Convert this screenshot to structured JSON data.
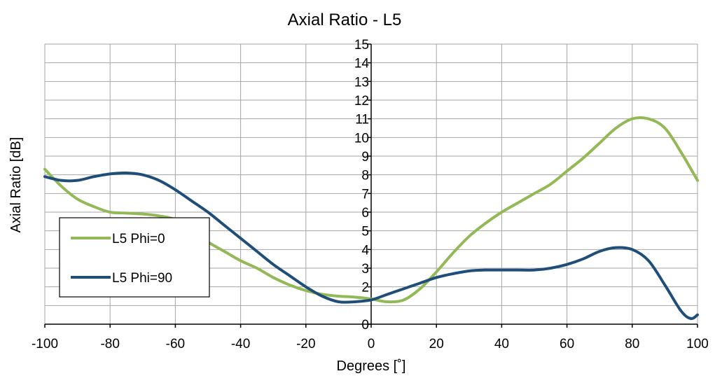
{
  "chart_data": {
    "type": "line",
    "title": "Axial Ratio - L5",
    "xlabel": "Degrees [˚]",
    "ylabel": "Axial Ratio [dB]",
    "xlim": [
      -100,
      100
    ],
    "ylim": [
      0,
      15
    ],
    "x_ticks": [
      "-100",
      "-80",
      "-60",
      "-40",
      "-20",
      "0",
      "20",
      "40",
      "60",
      "80",
      "100"
    ],
    "y_ticks": [
      "0",
      "2",
      "3",
      "4",
      "5",
      "6",
      "7",
      "8",
      "9",
      "10",
      "11",
      "12",
      "13",
      "14",
      "15"
    ],
    "grid": true,
    "legend_position": "left",
    "series": [
      {
        "name": "L5 Phi=0",
        "color": "#92b956",
        "x": [
          -100,
          -95,
          -90,
          -85,
          -80,
          -75,
          -70,
          -65,
          -60,
          -55,
          -50,
          -45,
          -40,
          -35,
          -30,
          -25,
          -20,
          -15,
          -10,
          -5,
          0,
          5,
          10,
          15,
          20,
          25,
          30,
          35,
          40,
          45,
          50,
          55,
          60,
          65,
          70,
          75,
          80,
          85,
          90,
          95,
          100
        ],
        "y": [
          8.3,
          7.4,
          6.7,
          6.3,
          6.0,
          5.95,
          5.9,
          5.8,
          5.6,
          5.0,
          4.4,
          3.9,
          3.4,
          3.0,
          2.5,
          2.1,
          1.8,
          1.6,
          1.5,
          1.45,
          1.35,
          1.2,
          1.3,
          1.9,
          2.8,
          3.8,
          4.7,
          5.4,
          6.0,
          6.5,
          7.0,
          7.5,
          8.2,
          8.9,
          9.7,
          10.5,
          11.0,
          11.0,
          10.5,
          9.2,
          7.7
        ]
      },
      {
        "name": "L5 Phi=90",
        "color": "#1f4e79",
        "x": [
          -100,
          -95,
          -90,
          -85,
          -80,
          -75,
          -70,
          -65,
          -60,
          -55,
          -50,
          -45,
          -40,
          -35,
          -30,
          -25,
          -20,
          -15,
          -10,
          -5,
          0,
          5,
          10,
          15,
          20,
          25,
          30,
          35,
          40,
          45,
          50,
          55,
          60,
          65,
          70,
          75,
          80,
          85,
          90,
          95,
          98,
          100
        ],
        "y": [
          7.9,
          7.7,
          7.7,
          7.9,
          8.05,
          8.1,
          8.0,
          7.7,
          7.2,
          6.6,
          6.0,
          5.3,
          4.6,
          3.9,
          3.2,
          2.6,
          2.0,
          1.5,
          1.2,
          1.2,
          1.3,
          1.6,
          1.9,
          2.2,
          2.5,
          2.7,
          2.85,
          2.9,
          2.9,
          2.9,
          2.9,
          3.0,
          3.2,
          3.5,
          3.9,
          4.1,
          4.0,
          3.4,
          2.1,
          0.7,
          0.3,
          0.5
        ]
      }
    ]
  }
}
